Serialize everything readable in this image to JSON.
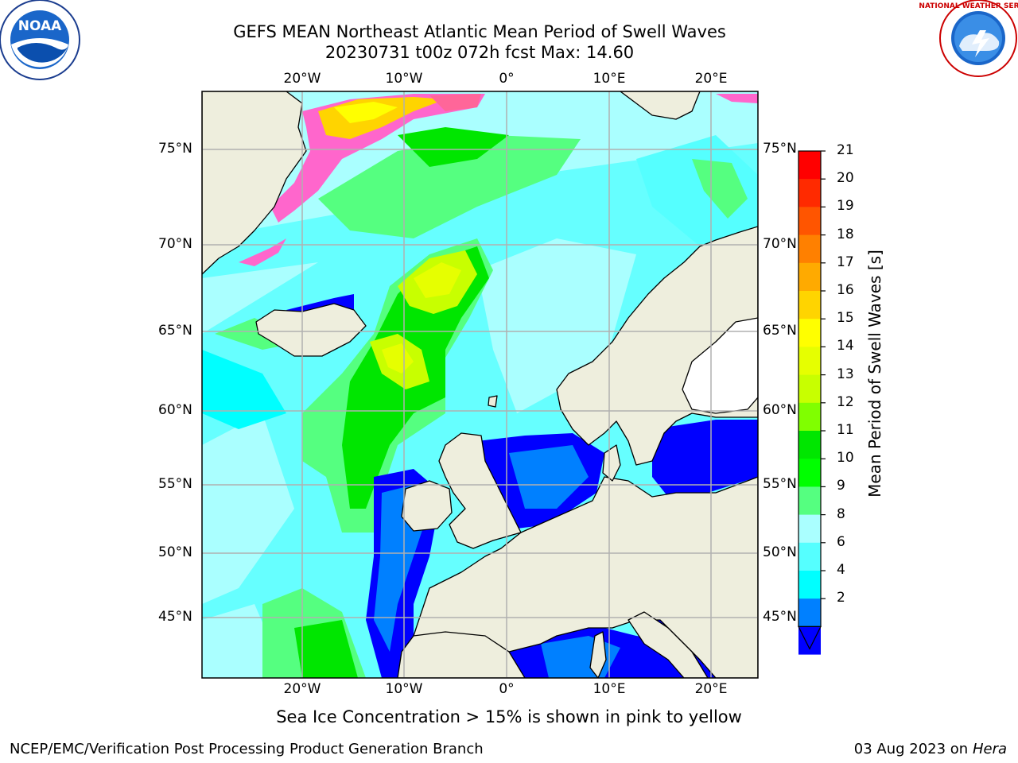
{
  "title_line1": "GEFS MEAN Northeast Atlantic Mean Period of Swell Waves",
  "title_line2": "20230731 t00z 072h fcst   Max: 14.60",
  "logo_left_text": "NOAA",
  "logo_right_text": "NATIONAL WEATHER SERVICE",
  "lon_labels": [
    "20°W",
    "10°W",
    "0°",
    "10°E",
    "20°E"
  ],
  "lat_labels": [
    "75°N",
    "70°N",
    "65°N",
    "60°N",
    "55°N",
    "50°N",
    "45°N"
  ],
  "colorbar": {
    "title": "Mean Period of Swell Waves [s]",
    "ticks": [
      "21",
      "20",
      "19",
      "18",
      "17",
      "16",
      "15",
      "14",
      "13",
      "12",
      "11",
      "10",
      "9",
      "8",
      "6",
      "4",
      "2"
    ],
    "colors": [
      "#ff0000",
      "#ff2a00",
      "#ff5500",
      "#ff8000",
      "#ffaa00",
      "#ffd400",
      "#ffff00",
      "#e6ff00",
      "#c8ff00",
      "#80ff00",
      "#00e600",
      "#00ff00",
      "#55ff80",
      "#aaffff",
      "#55ffff",
      "#00ffff",
      "#0080ff",
      "#0000ff"
    ]
  },
  "colors": {
    "land": "#eeeedd",
    "ocean_base": "#66ffff",
    "coast": "#000000",
    "grid": "#b0b0b0"
  },
  "footnote": "Sea Ice Concentration > 15% is shown in pink to yellow",
  "footer_left": "NCEP/EMC/Verification Post Processing Product Generation Branch",
  "footer_right_date": "03 Aug 2023 on",
  "footer_right_host": "Hera"
}
